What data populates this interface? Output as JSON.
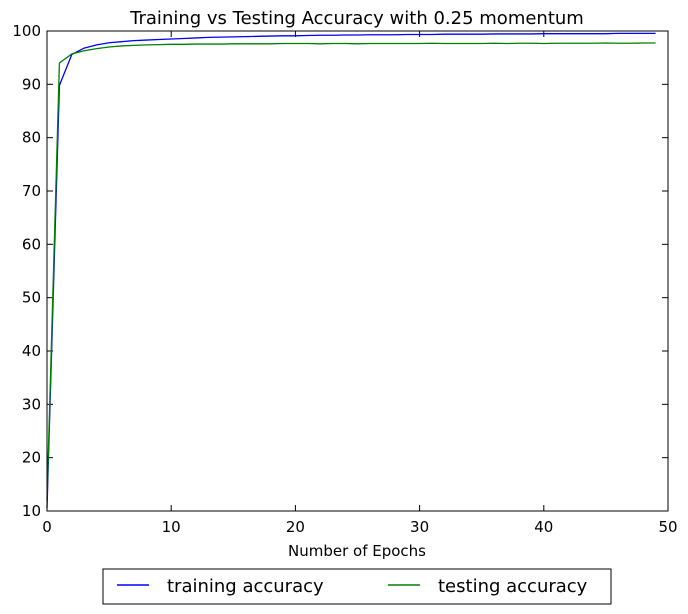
{
  "chart_data": {
    "type": "line",
    "title": "Training vs Testing Accuracy with 0.25 momentum",
    "xlabel": "Number of Epochs",
    "ylabel": "",
    "xlim": [
      0,
      50
    ],
    "ylim": [
      10,
      100
    ],
    "xticks": [
      0,
      10,
      20,
      30,
      40,
      50
    ],
    "yticks": [
      10,
      20,
      30,
      40,
      50,
      60,
      70,
      80,
      90,
      100
    ],
    "grid": false,
    "legend_position": "bottom-center-outside",
    "x": [
      0,
      1,
      2,
      3,
      4,
      5,
      6,
      7,
      8,
      9,
      10,
      11,
      12,
      13,
      14,
      15,
      16,
      17,
      18,
      19,
      20,
      21,
      22,
      23,
      24,
      25,
      26,
      27,
      28,
      29,
      30,
      31,
      32,
      33,
      34,
      35,
      36,
      37,
      38,
      39,
      40,
      41,
      42,
      43,
      44,
      45,
      46,
      47,
      48,
      49
    ],
    "series": [
      {
        "name": "training accuracy",
        "color": "#0000ff",
        "values": [
          10.5,
          89.8,
          95.6,
          96.8,
          97.4,
          97.8,
          98.0,
          98.2,
          98.3,
          98.4,
          98.5,
          98.6,
          98.7,
          98.8,
          98.85,
          98.9,
          98.95,
          99.0,
          99.05,
          99.1,
          99.1,
          99.15,
          99.2,
          99.2,
          99.25,
          99.25,
          99.3,
          99.3,
          99.3,
          99.35,
          99.35,
          99.35,
          99.4,
          99.4,
          99.4,
          99.4,
          99.45,
          99.45,
          99.45,
          99.45,
          99.5,
          99.5,
          99.5,
          99.5,
          99.5,
          99.5,
          99.55,
          99.55,
          99.55,
          99.55
        ]
      },
      {
        "name": "testing accuracy",
        "color": "#008000",
        "values": [
          12.0,
          94.0,
          95.7,
          96.3,
          96.7,
          97.0,
          97.2,
          97.3,
          97.4,
          97.45,
          97.5,
          97.5,
          97.55,
          97.55,
          97.55,
          97.6,
          97.6,
          97.6,
          97.6,
          97.65,
          97.65,
          97.65,
          97.6,
          97.65,
          97.65,
          97.6,
          97.65,
          97.65,
          97.65,
          97.65,
          97.65,
          97.7,
          97.65,
          97.65,
          97.65,
          97.65,
          97.7,
          97.65,
          97.7,
          97.7,
          97.65,
          97.7,
          97.7,
          97.7,
          97.7,
          97.75,
          97.7,
          97.7,
          97.75,
          97.75
        ]
      }
    ]
  }
}
